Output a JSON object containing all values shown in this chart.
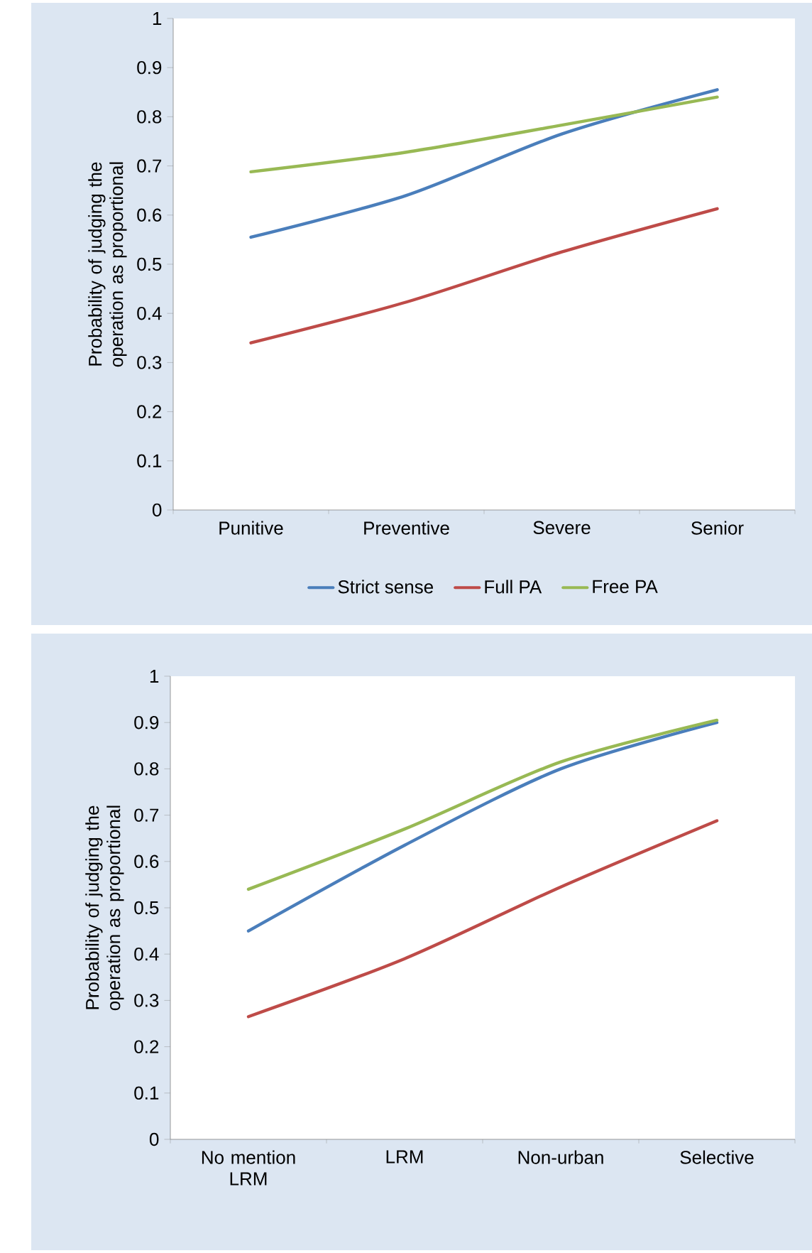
{
  "chart_data": [
    {
      "type": "line",
      "categories": [
        "Punitive",
        "Preventive",
        "Severe",
        "Senior"
      ],
      "ylabel": "Probability of judging the operation as proportional",
      "ylim": [
        0,
        1
      ],
      "yticks": [
        0,
        0.1,
        0.2,
        0.3,
        0.4,
        0.5,
        0.6,
        0.7,
        0.8,
        0.9,
        1
      ],
      "legend": "bottom",
      "marker": "none",
      "line_style": "solid",
      "series": [
        {
          "name": "Strict sense",
          "color": "#4a7ebb",
          "values": [
            0.555,
            0.64,
            0.765,
            0.855
          ]
        },
        {
          "name": "Full PA",
          "color": "#be4b48",
          "values": [
            0.34,
            0.423,
            0.525,
            0.613
          ]
        },
        {
          "name": "Free PA",
          "color": "#98b954",
          "values": [
            0.688,
            0.728,
            0.783,
            0.84
          ]
        }
      ]
    },
    {
      "type": "line",
      "categories": [
        "No mention LRM",
        "LRM",
        "Non-urban",
        "Selective"
      ],
      "ylabel": "Probability of judging the operation as proportional",
      "ylim": [
        0,
        1
      ],
      "yticks": [
        0,
        0.1,
        0.2,
        0.3,
        0.4,
        0.5,
        0.6,
        0.7,
        0.8,
        0.9,
        1
      ],
      "marker": "none",
      "line_style": "solid",
      "series": [
        {
          "color": "#4a7ebb",
          "values": [
            0.45,
            0.635,
            0.8,
            0.9
          ]
        },
        {
          "color": "#be4b48",
          "values": [
            0.265,
            0.39,
            0.545,
            0.688
          ]
        },
        {
          "color": "#98b954",
          "values": [
            0.54,
            0.67,
            0.815,
            0.905
          ]
        }
      ]
    }
  ]
}
